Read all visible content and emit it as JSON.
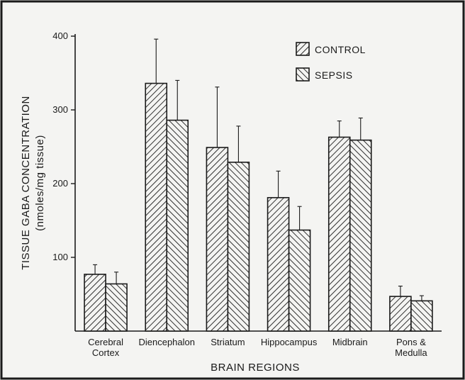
{
  "chart_data": {
    "type": "bar",
    "categories": [
      [
        "Cerebral",
        "Cortex"
      ],
      [
        "Diencephalon"
      ],
      [
        "Striatum"
      ],
      [
        "Hippocampus"
      ],
      [
        "Midbrain"
      ],
      [
        "Pons &",
        "Medulla"
      ]
    ],
    "series": [
      {
        "name": "CONTROL",
        "values": [
          77,
          336,
          249,
          181,
          263,
          47
        ],
        "errors": [
          13,
          60,
          82,
          36,
          22,
          14
        ],
        "pattern": "back-diagonal"
      },
      {
        "name": "SEPSIS",
        "values": [
          64,
          286,
          229,
          137,
          259,
          41
        ],
        "errors": [
          16,
          54,
          49,
          32,
          30,
          7
        ],
        "pattern": "forward-diagonal"
      }
    ],
    "xlabel": "BRAIN REGIONS",
    "ylabel": "TISSUE GABA CONCENTRATION",
    "ylabel_sub": "(nmoles/mg tissue)",
    "ylim": [
      0,
      400
    ],
    "yticks": [
      100,
      200,
      300,
      400
    ],
    "legend_position": "top-right",
    "grid": false
  }
}
